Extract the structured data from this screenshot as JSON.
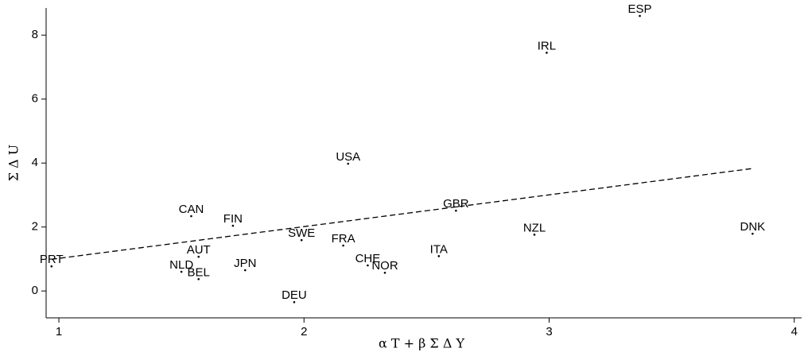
{
  "chart_data": {
    "type": "scatter",
    "x_label": "α T + β Σ Δ Y",
    "y_label": "Σ Δ U",
    "labels": [
      "ESP",
      "IRL",
      "USA",
      "GBR",
      "CAN",
      "FIN",
      "NZL",
      "DNK",
      "SWE",
      "FRA",
      "ITA",
      "AUT",
      "PRT",
      "CHE",
      "NOR",
      "NLD",
      "JPN",
      "BEL",
      "DEU"
    ],
    "x": [
      3.37,
      2.99,
      2.18,
      2.62,
      1.54,
      1.71,
      2.94,
      3.83,
      1.99,
      2.16,
      2.55,
      1.57,
      0.97,
      2.26,
      2.33,
      1.5,
      1.76,
      1.57,
      1.96
    ],
    "values": [
      8.6,
      7.45,
      3.98,
      2.51,
      2.34,
      2.04,
      1.76,
      1.79,
      1.59,
      1.42,
      1.09,
      1.07,
      0.77,
      0.8,
      0.57,
      0.6,
      0.65,
      0.37,
      -0.35
    ],
    "color": "#000000",
    "trend_line": {
      "x": [
        0.97,
        3.83
      ],
      "values": [
        0.99,
        3.83
      ]
    },
    "xlim": [
      0.948,
      4.03
    ],
    "ylim": [
      -0.84,
      8.85
    ],
    "xticks": [
      1,
      2,
      3,
      4
    ],
    "yticks": [
      0,
      2,
      4,
      6,
      8
    ]
  }
}
